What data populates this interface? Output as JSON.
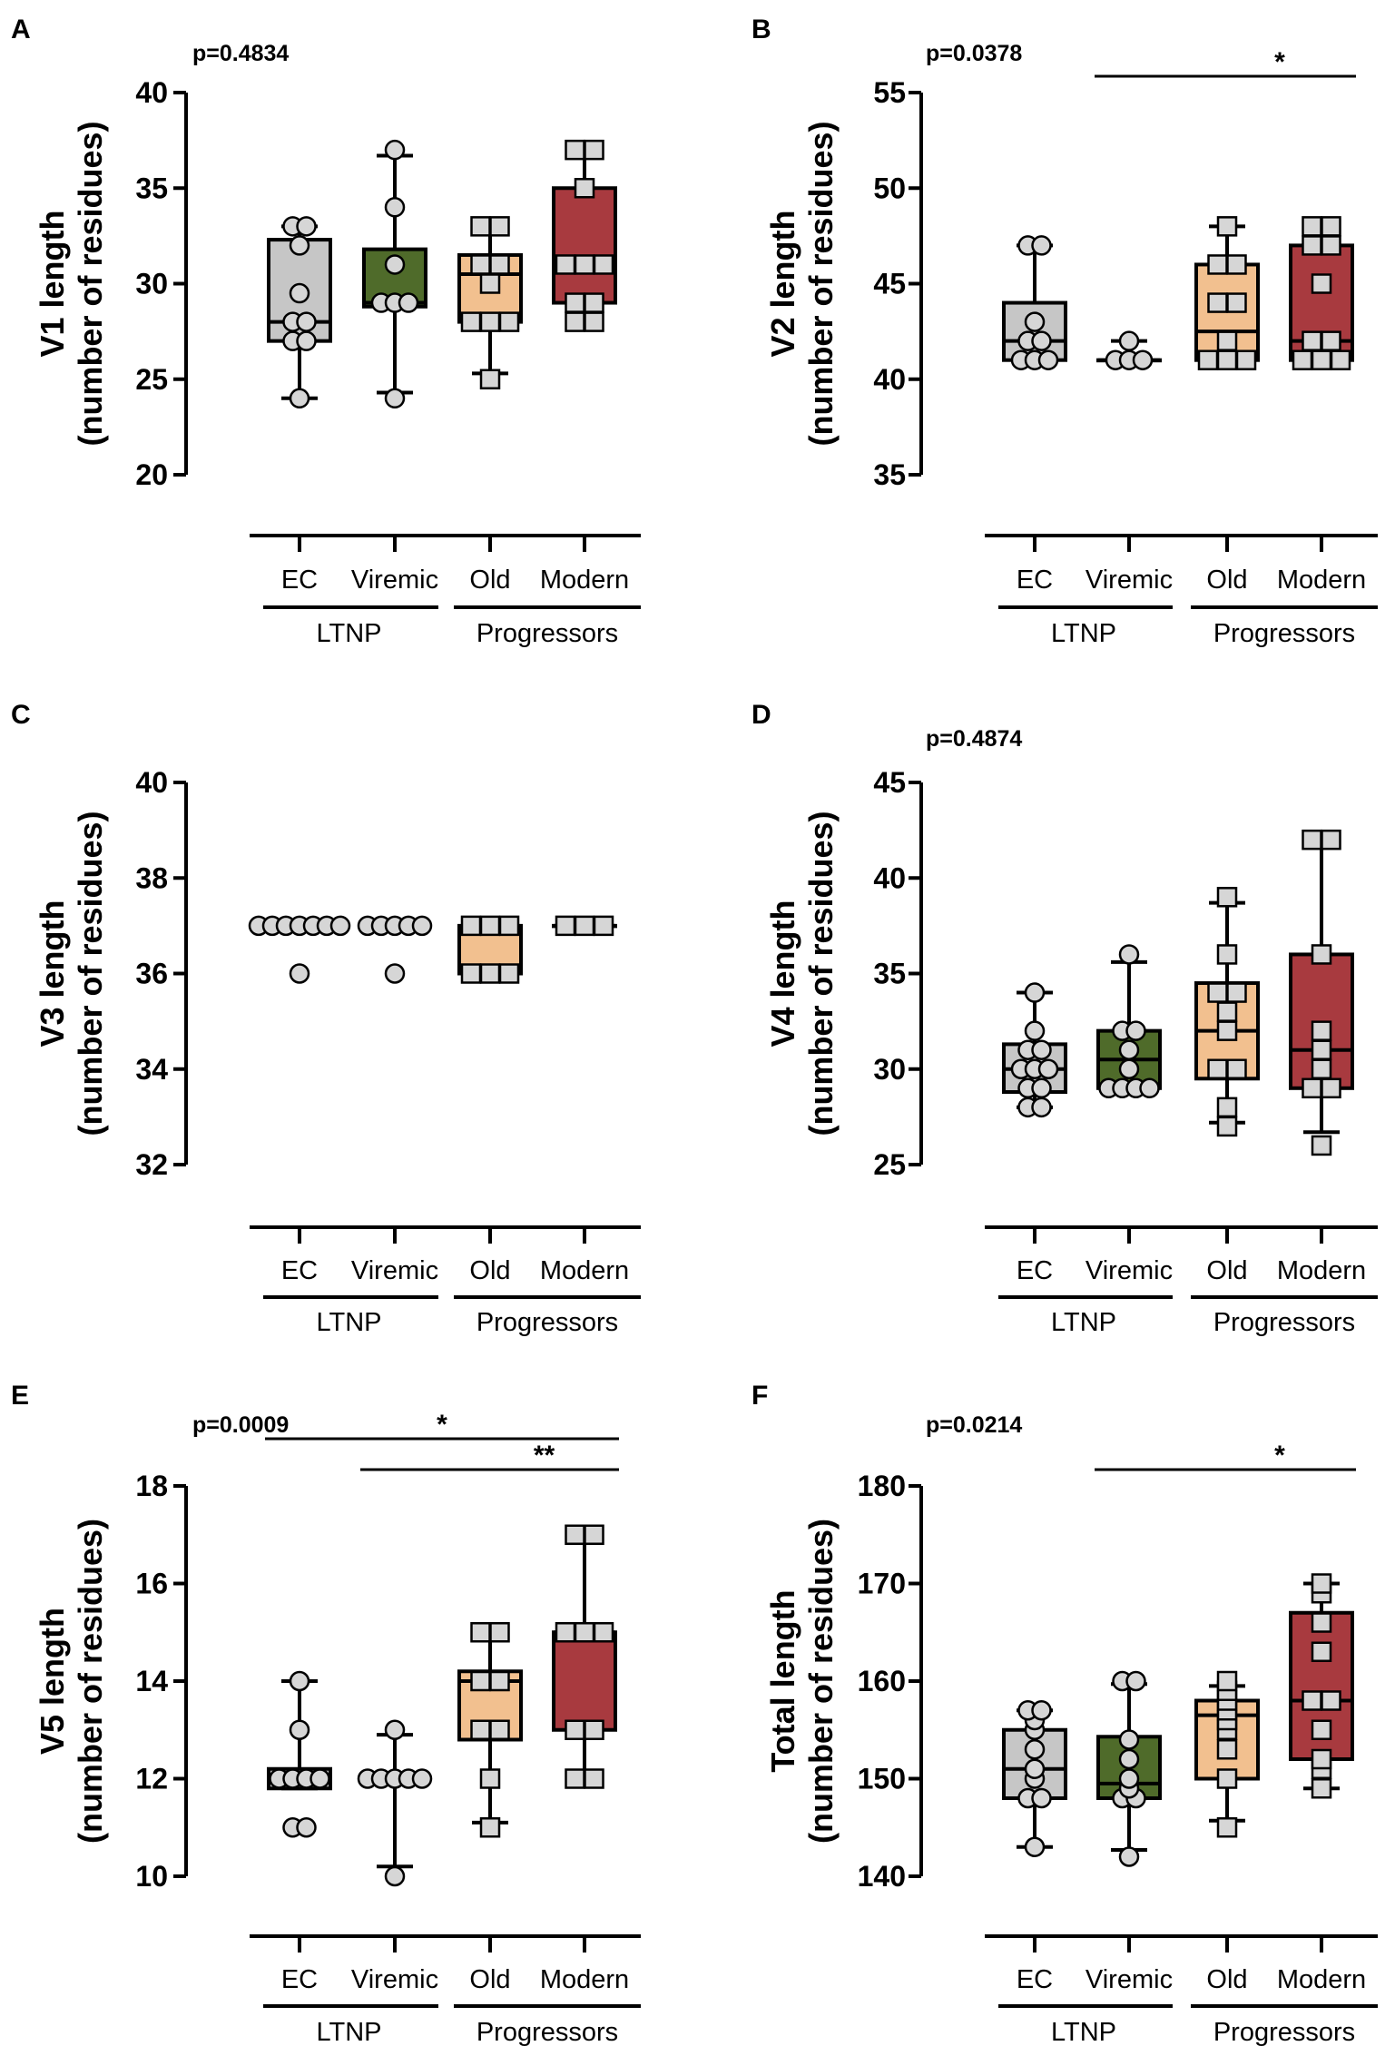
{
  "colors": {
    "EC": "#c6c6c6",
    "Viremic": "#4f6b2a",
    "Old": "#f2c08f",
    "Modern": "#a83a3f",
    "point": "#d6d6d6",
    "ink": "#000000"
  },
  "categories": [
    "EC",
    "Viremic",
    "Old",
    "Modern"
  ],
  "groups": [
    {
      "label": "LTNP",
      "members": [
        "EC",
        "Viremic"
      ]
    },
    {
      "label": "Progressors",
      "members": [
        "Old",
        "Modern"
      ]
    }
  ],
  "chart_data": [
    {
      "panel": "A",
      "type": "box",
      "pvalue": "p=0.4834",
      "ylabel": [
        "V1 length",
        "(number of residues)"
      ],
      "ylim": [
        20,
        40
      ],
      "yticks": [
        20,
        25,
        30,
        35,
        40
      ],
      "significance": [],
      "boxes": [
        {
          "category": "EC",
          "min": 24,
          "q1": 27,
          "median": 28,
          "q3": 32.3,
          "max": 33,
          "points": [
            24,
            27,
            27,
            28,
            28,
            29.5,
            32,
            33,
            33
          ]
        },
        {
          "category": "Viremic",
          "min": 24.3,
          "q1": 28.8,
          "median": 29,
          "q3": 31.8,
          "max": 36.7,
          "points": [
            24,
            29,
            29,
            29,
            31,
            34,
            37
          ]
        },
        {
          "category": "Old",
          "min": 25.3,
          "q1": 28,
          "median": 30.5,
          "q3": 31.5,
          "max": 33,
          "points": [
            25,
            28,
            28,
            28,
            30,
            31,
            31,
            33,
            33
          ]
        },
        {
          "category": "Modern",
          "min": 28,
          "q1": 29,
          "median": 31,
          "q3": 35,
          "max": 37,
          "points": [
            28,
            28,
            29,
            29,
            31,
            31,
            31,
            35,
            37,
            37
          ]
        }
      ]
    },
    {
      "panel": "B",
      "type": "box",
      "pvalue": "p=0.0378",
      "ylabel": [
        "V2 length",
        "(number of residues)"
      ],
      "ylim": [
        35,
        55
      ],
      "yticks": [
        35,
        40,
        45,
        50,
        55
      ],
      "significance": [
        {
          "from": "Viremic",
          "to": "Modern",
          "label": "*"
        }
      ],
      "boxes": [
        {
          "category": "EC",
          "min": 41,
          "q1": 41,
          "median": 42,
          "q3": 44,
          "max": 47,
          "points": [
            41,
            41,
            41,
            42,
            42,
            43,
            47,
            47
          ]
        },
        {
          "category": "Viremic",
          "min": 41,
          "q1": 41,
          "median": 41,
          "q3": 41,
          "max": 42,
          "points": [
            41,
            41,
            41,
            42
          ]
        },
        {
          "category": "Old",
          "min": 41,
          "q1": 41,
          "median": 42.5,
          "q3": 46,
          "max": 48,
          "points": [
            41,
            41,
            41,
            42,
            44,
            44,
            46,
            46,
            48
          ]
        },
        {
          "category": "Modern",
          "min": 41,
          "q1": 41,
          "median": 42,
          "q3": 47,
          "max": 48,
          "points": [
            41,
            41,
            41,
            42,
            42,
            45,
            47,
            47,
            48,
            48
          ]
        }
      ]
    },
    {
      "panel": "C",
      "type": "box",
      "pvalue": "",
      "ylabel": [
        "V3 length",
        "(number of residues)"
      ],
      "ylim": [
        32,
        40
      ],
      "yticks": [
        32,
        34,
        36,
        38,
        40
      ],
      "significance": [],
      "boxes": [
        {
          "category": "EC",
          "min": 37,
          "q1": 37,
          "median": 37,
          "q3": 37,
          "max": 37,
          "points": [
            36,
            37,
            37,
            37,
            37,
            37,
            37,
            37
          ]
        },
        {
          "category": "Viremic",
          "min": 37,
          "q1": 37,
          "median": 37,
          "q3": 37,
          "max": 37,
          "points": [
            36,
            37,
            37,
            37,
            37,
            37
          ]
        },
        {
          "category": "Old",
          "min": 36,
          "q1": 36,
          "median": 36,
          "q3": 37,
          "max": 37,
          "points": [
            36,
            36,
            36,
            37,
            37,
            37
          ]
        },
        {
          "category": "Modern",
          "min": 37,
          "q1": 37,
          "median": 37,
          "q3": 37,
          "max": 37,
          "points": [
            37,
            37,
            37
          ]
        }
      ]
    },
    {
      "panel": "D",
      "type": "box",
      "pvalue": "p=0.4874",
      "ylabel": [
        "V4 length",
        "(number of residues)"
      ],
      "ylim": [
        25,
        45
      ],
      "yticks": [
        25,
        30,
        35,
        40,
        45
      ],
      "significance": [],
      "boxes": [
        {
          "category": "EC",
          "min": 28,
          "q1": 28.8,
          "median": 30,
          "q3": 31.3,
          "max": 34,
          "points": [
            28,
            28,
            29,
            29,
            30,
            30,
            30,
            31,
            31,
            32,
            34
          ]
        },
        {
          "category": "Viremic",
          "min": 29,
          "q1": 29,
          "median": 30.5,
          "q3": 32,
          "max": 35.6,
          "points": [
            29,
            29,
            29,
            29,
            30,
            31,
            32,
            32,
            36
          ]
        },
        {
          "category": "Old",
          "min": 27.2,
          "q1": 29.5,
          "median": 32,
          "q3": 34.5,
          "max": 38.7,
          "points": [
            27,
            28,
            30,
            30,
            32,
            33,
            34,
            34,
            36,
            39
          ]
        },
        {
          "category": "Modern",
          "min": 26.7,
          "q1": 29,
          "median": 31,
          "q3": 36,
          "max": 42,
          "points": [
            26,
            29,
            29,
            30,
            31,
            32,
            36,
            42,
            42
          ]
        }
      ]
    },
    {
      "panel": "E",
      "type": "box",
      "pvalue": "p=0.0009",
      "ylabel": [
        "V5 length",
        "(number of residues)"
      ],
      "ylim": [
        10,
        18
      ],
      "yticks": [
        10,
        12,
        14,
        16,
        18
      ],
      "significance": [
        {
          "from": "EC",
          "to": "Modern",
          "label": "*"
        },
        {
          "from": "Viremic",
          "to": "Modern",
          "label": "**"
        }
      ],
      "boxes": [
        {
          "category": "EC",
          "min": 11.8,
          "q1": 11.8,
          "median": 12,
          "q3": 12.2,
          "max": 14,
          "points": [
            11,
            11,
            12,
            12,
            12,
            12,
            13,
            14
          ]
        },
        {
          "category": "Viremic",
          "min": 10.2,
          "q1": 12,
          "median": 12,
          "q3": 12,
          "max": 12.9,
          "points": [
            10,
            12,
            12,
            12,
            12,
            12,
            13
          ]
        },
        {
          "category": "Old",
          "min": 11.1,
          "q1": 12.8,
          "median": 14,
          "q3": 14.2,
          "max": 15,
          "points": [
            11,
            12,
            13,
            13,
            14,
            14,
            15,
            15
          ]
        },
        {
          "category": "Modern",
          "min": 12,
          "q1": 13,
          "median": 15,
          "q3": 15,
          "max": 17,
          "points": [
            12,
            12,
            13,
            13,
            15,
            15,
            15,
            17,
            17
          ]
        }
      ]
    },
    {
      "panel": "F",
      "type": "box",
      "pvalue": "p=0.0214",
      "ylabel": [
        "Total length",
        "(number of residues)"
      ],
      "ylim": [
        140,
        180
      ],
      "yticks": [
        140,
        150,
        160,
        170,
        180
      ],
      "significance": [
        {
          "from": "Viremic",
          "to": "Modern",
          "label": "*"
        }
      ],
      "boxes": [
        {
          "category": "EC",
          "min": 143,
          "q1": 148,
          "median": 151,
          "q3": 155,
          "max": 157,
          "points": [
            143,
            148,
            148,
            150,
            151,
            153,
            155,
            156,
            157,
            157
          ]
        },
        {
          "category": "Viremic",
          "min": 142.7,
          "q1": 148,
          "median": 149.5,
          "q3": 154.3,
          "max": 159.7,
          "points": [
            142,
            148,
            148,
            149,
            150,
            152,
            154,
            160,
            160
          ]
        },
        {
          "category": "Old",
          "min": 145.7,
          "q1": 150,
          "median": 156.5,
          "q3": 158,
          "max": 159.5,
          "points": [
            145,
            150,
            153,
            155,
            156,
            157,
            158,
            159,
            160
          ]
        },
        {
          "category": "Modern",
          "min": 149,
          "q1": 152,
          "median": 158,
          "q3": 167,
          "max": 170,
          "points": [
            149,
            151,
            152,
            155,
            158,
            158,
            163,
            166,
            169,
            170
          ]
        }
      ]
    }
  ]
}
